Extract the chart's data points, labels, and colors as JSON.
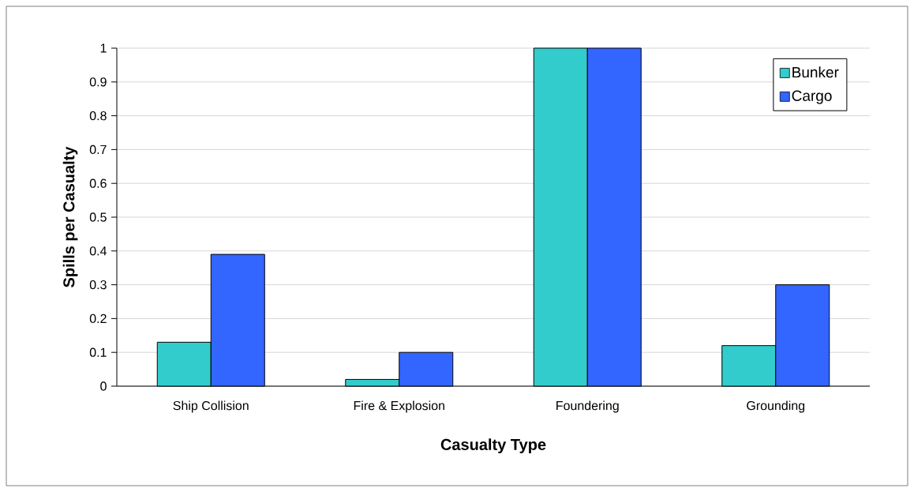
{
  "chart_data": {
    "type": "bar",
    "xlabel": "Casualty Type",
    "ylabel": "Spills per Casualty",
    "categories": [
      "Ship Collision",
      "Fire & Explosion",
      "Foundering",
      "Grounding"
    ],
    "series": [
      {
        "name": "Bunker",
        "color": "#33cccc",
        "values": [
          0.13,
          0.02,
          1,
          0.12
        ]
      },
      {
        "name": "Cargo",
        "color": "#3366ff",
        "values": [
          0.39,
          0.1,
          1,
          0.3
        ]
      }
    ],
    "ylim": [
      0,
      1
    ],
    "yticks": [
      0,
      0.1,
      0.2,
      0.3,
      0.4,
      0.5,
      0.6,
      0.7,
      0.8,
      0.9,
      1
    ],
    "grid": "y",
    "legend": "top right"
  }
}
